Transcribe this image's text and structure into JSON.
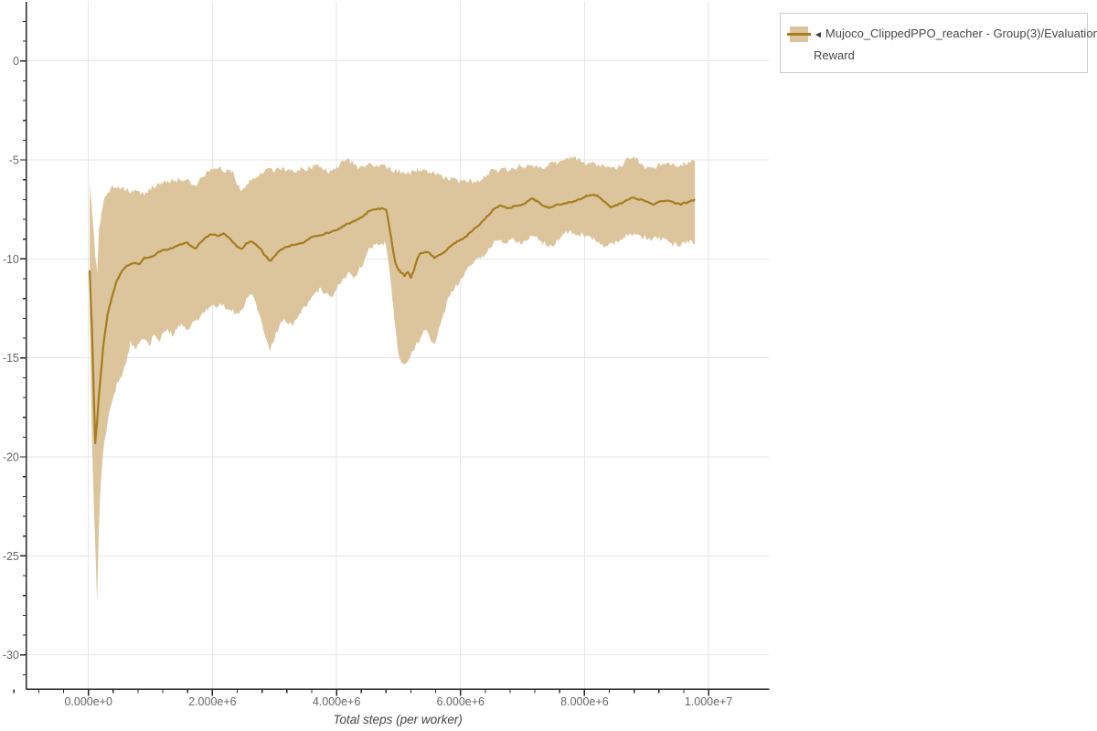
{
  "page": {
    "background": "#ffffff"
  },
  "legend": {
    "marker": "◄",
    "line1": "Mujoco_ClippedPPO_reacher - Group(3)/Evaluation",
    "line2": "Reward",
    "swatch_fill": "#dcc59c",
    "swatch_line": "#a67c1e"
  },
  "chart_data": {
    "type": "line",
    "title": "",
    "xlabel": "Total steps (per worker)",
    "ylabel": "",
    "grid": true,
    "legend_position": "top-right",
    "xlim_steps": [
      -1000000,
      11000000
    ],
    "ylim": [
      -31.7,
      3.0
    ],
    "colors": {
      "line": "#a67c1e",
      "band": "#dcc59c",
      "grid": "#e6e6e6",
      "axis": "#262626",
      "tick_label": "#666666",
      "axis_title": "#444444"
    },
    "x_axis": {
      "title": "Total steps (per worker)",
      "minor_step_millions": 0.4,
      "major_ticks": [
        {
          "value_millions": 0,
          "label": "0.000e+0"
        },
        {
          "value_millions": 2,
          "label": "2.000e+6"
        },
        {
          "value_millions": 4,
          "label": "4.000e+6"
        },
        {
          "value_millions": 6,
          "label": "6.000e+6"
        },
        {
          "value_millions": 8,
          "label": "8.000e+6"
        },
        {
          "value_millions": 10,
          "label": "1.000e+7"
        }
      ]
    },
    "y_axis": {
      "minor_step": 1,
      "major_ticks": [
        {
          "value": 0,
          "label": "0"
        },
        {
          "value": -5,
          "label": "-5"
        },
        {
          "value": -10,
          "label": "-10"
        },
        {
          "value": -15,
          "label": "-15"
        },
        {
          "value": -20,
          "label": "-20"
        },
        {
          "value": -25,
          "label": "-25"
        },
        {
          "value": -30,
          "label": "-30"
        }
      ]
    },
    "series": [
      {
        "name": "Mujoco_ClippedPPO_reacher - Group(3)/Evaluation Reward",
        "line_color": "#a67c1e",
        "band_color": "#dcc59c",
        "x_millions": [
          0.02,
          0.06,
          0.11,
          0.14,
          0.17,
          0.2,
          0.24,
          0.31,
          0.39,
          0.46,
          0.54,
          0.61,
          0.68,
          0.75,
          0.82,
          0.9,
          0.98,
          1.05,
          1.13,
          1.2,
          1.28,
          1.35,
          1.43,
          1.5,
          1.58,
          1.65,
          1.73,
          1.8,
          1.88,
          1.95,
          2.03,
          2.1,
          2.18,
          2.26,
          2.33,
          2.4,
          2.48,
          2.55,
          2.63,
          2.7,
          2.78,
          2.85,
          2.93,
          3.0,
          3.08,
          3.15,
          3.23,
          3.3,
          3.38,
          3.45,
          3.53,
          3.6,
          3.68,
          3.75,
          3.83,
          3.9,
          3.98,
          4.05,
          4.13,
          4.2,
          4.28,
          4.35,
          4.43,
          4.5,
          4.58,
          4.65,
          4.73,
          4.8,
          4.85,
          4.9,
          4.95,
          5.0,
          5.05,
          5.1,
          5.15,
          5.2,
          5.25,
          5.3,
          5.36,
          5.43,
          5.5,
          5.58,
          5.65,
          5.73,
          5.8,
          5.88,
          5.95,
          6.03,
          6.1,
          6.18,
          6.25,
          6.33,
          6.4,
          6.48,
          6.55,
          6.63,
          6.7,
          6.78,
          6.85,
          6.93,
          7.0,
          7.08,
          7.15,
          7.23,
          7.3,
          7.38,
          7.45,
          7.53,
          7.6,
          7.68,
          7.75,
          7.83,
          7.9,
          7.98,
          8.05,
          8.13,
          8.2,
          8.28,
          8.35,
          8.43,
          8.5,
          8.58,
          8.65,
          8.73,
          8.8,
          8.88,
          8.95,
          9.03,
          9.1,
          9.18,
          9.25,
          9.33,
          9.4,
          9.48,
          9.55,
          9.63,
          9.7,
          9.78
        ],
        "mean": [
          -10.6,
          -13.8,
          -19.3,
          -18.2,
          -16.9,
          -15.8,
          -14.4,
          -12.8,
          -11.8,
          -11.1,
          -10.6,
          -10.35,
          -10.25,
          -10.2,
          -10.25,
          -9.95,
          -9.9,
          -9.85,
          -9.65,
          -9.55,
          -9.55,
          -9.45,
          -9.35,
          -9.25,
          -9.15,
          -9.35,
          -9.45,
          -9.2,
          -8.95,
          -8.8,
          -8.75,
          -8.85,
          -8.7,
          -8.9,
          -9.15,
          -9.4,
          -9.5,
          -9.2,
          -9.1,
          -9.25,
          -9.5,
          -9.85,
          -10.1,
          -9.85,
          -9.6,
          -9.45,
          -9.35,
          -9.3,
          -9.25,
          -9.2,
          -9.05,
          -8.9,
          -8.85,
          -8.8,
          -8.7,
          -8.65,
          -8.55,
          -8.45,
          -8.3,
          -8.2,
          -8.1,
          -8.0,
          -7.85,
          -7.65,
          -7.5,
          -7.48,
          -7.45,
          -7.5,
          -8.3,
          -9.3,
          -10.2,
          -10.55,
          -10.7,
          -10.85,
          -10.65,
          -10.95,
          -10.55,
          -10.0,
          -9.7,
          -9.65,
          -9.7,
          -9.95,
          -9.8,
          -9.7,
          -9.45,
          -9.25,
          -9.1,
          -9.0,
          -8.85,
          -8.6,
          -8.4,
          -8.2,
          -7.95,
          -7.7,
          -7.45,
          -7.3,
          -7.35,
          -7.45,
          -7.35,
          -7.3,
          -7.25,
          -7.1,
          -6.95,
          -7.05,
          -7.25,
          -7.4,
          -7.4,
          -7.3,
          -7.25,
          -7.2,
          -7.15,
          -7.1,
          -7.0,
          -6.9,
          -6.8,
          -6.75,
          -6.8,
          -7.0,
          -7.2,
          -7.4,
          -7.3,
          -7.2,
          -7.1,
          -6.95,
          -6.9,
          -7.0,
          -7.05,
          -7.15,
          -7.25,
          -7.15,
          -7.1,
          -7.05,
          -7.1,
          -7.2,
          -7.25,
          -7.15,
          -7.1,
          -7.0
        ],
        "hi": [
          -6.2,
          -7.6,
          -9.8,
          -10.7,
          -8.6,
          -7.9,
          -7.2,
          -6.7,
          -6.4,
          -6.35,
          -6.4,
          -6.45,
          -6.6,
          -6.5,
          -6.55,
          -6.8,
          -6.5,
          -6.35,
          -6.25,
          -6.15,
          -6.1,
          -6.0,
          -6.05,
          -5.95,
          -6.05,
          -6.15,
          -6.25,
          -6.0,
          -5.8,
          -5.6,
          -5.5,
          -5.45,
          -5.5,
          -5.55,
          -5.6,
          -6.2,
          -6.6,
          -6.3,
          -6.0,
          -5.9,
          -5.7,
          -5.55,
          -5.5,
          -5.55,
          -5.5,
          -5.45,
          -5.55,
          -5.6,
          -5.5,
          -5.5,
          -5.45,
          -5.4,
          -5.3,
          -5.35,
          -5.5,
          -5.6,
          -5.5,
          -5.2,
          -5.05,
          -5.0,
          -5.25,
          -5.4,
          -5.3,
          -5.2,
          -5.25,
          -5.3,
          -5.3,
          -5.35,
          -5.45,
          -5.5,
          -5.55,
          -5.6,
          -5.65,
          -5.7,
          -5.65,
          -5.6,
          -5.55,
          -5.5,
          -5.55,
          -5.6,
          -5.6,
          -5.7,
          -5.8,
          -5.9,
          -5.95,
          -6.0,
          -6.05,
          -6.05,
          -6.05,
          -6.1,
          -6.1,
          -6.05,
          -5.8,
          -5.6,
          -5.55,
          -5.5,
          -5.45,
          -5.5,
          -5.4,
          -5.35,
          -5.3,
          -5.25,
          -5.2,
          -5.35,
          -5.4,
          -5.3,
          -5.2,
          -5.15,
          -5.05,
          -4.95,
          -4.9,
          -4.9,
          -4.95,
          -5.1,
          -5.15,
          -5.2,
          -5.25,
          -5.3,
          -5.35,
          -5.4,
          -5.45,
          -5.3,
          -5.1,
          -4.95,
          -4.85,
          -5.1,
          -5.3,
          -5.4,
          -5.35,
          -5.3,
          -5.25,
          -5.2,
          -5.25,
          -5.3,
          -5.25,
          -5.2,
          -5.15,
          -5.1
        ],
        "lo": [
          -13.0,
          -19.5,
          -24.5,
          -27.3,
          -23.5,
          -21.3,
          -19.6,
          -18.2,
          -17.1,
          -16.3,
          -15.9,
          -15.3,
          -14.2,
          -14.6,
          -14.3,
          -14.0,
          -14.45,
          -13.9,
          -14.2,
          -13.8,
          -13.6,
          -13.9,
          -13.5,
          -13.3,
          -13.6,
          -13.4,
          -13.2,
          -12.9,
          -12.7,
          -12.4,
          -12.3,
          -12.4,
          -12.3,
          -12.5,
          -12.6,
          -12.8,
          -12.6,
          -11.9,
          -11.8,
          -12.2,
          -13.0,
          -13.9,
          -14.6,
          -14.0,
          -13.3,
          -13.0,
          -13.2,
          -13.35,
          -12.9,
          -12.6,
          -12.3,
          -12.0,
          -11.7,
          -11.5,
          -11.8,
          -12.0,
          -11.7,
          -11.3,
          -10.9,
          -10.7,
          -10.9,
          -10.6,
          -10.35,
          -9.6,
          -9.4,
          -9.25,
          -9.2,
          -9.3,
          -10.5,
          -12.0,
          -13.5,
          -14.8,
          -15.3,
          -15.35,
          -15.1,
          -14.9,
          -14.6,
          -14.3,
          -14.0,
          -13.6,
          -13.9,
          -14.4,
          -13.6,
          -12.8,
          -12.0,
          -11.6,
          -11.3,
          -11.0,
          -10.5,
          -10.3,
          -10.1,
          -10.0,
          -9.7,
          -9.4,
          -9.15,
          -9.0,
          -9.2,
          -9.1,
          -9.0,
          -9.15,
          -9.2,
          -9.0,
          -8.85,
          -8.95,
          -9.1,
          -9.3,
          -9.35,
          -9.2,
          -9.0,
          -8.7,
          -8.6,
          -8.65,
          -8.75,
          -8.8,
          -8.85,
          -9.0,
          -9.15,
          -9.3,
          -9.4,
          -9.3,
          -9.1,
          -9.0,
          -8.9,
          -8.8,
          -8.75,
          -8.85,
          -8.9,
          -9.0,
          -9.05,
          -8.95,
          -9.0,
          -9.1,
          -9.2,
          -9.3,
          -9.25,
          -9.2,
          -9.15,
          -9.2
        ]
      }
    ]
  }
}
